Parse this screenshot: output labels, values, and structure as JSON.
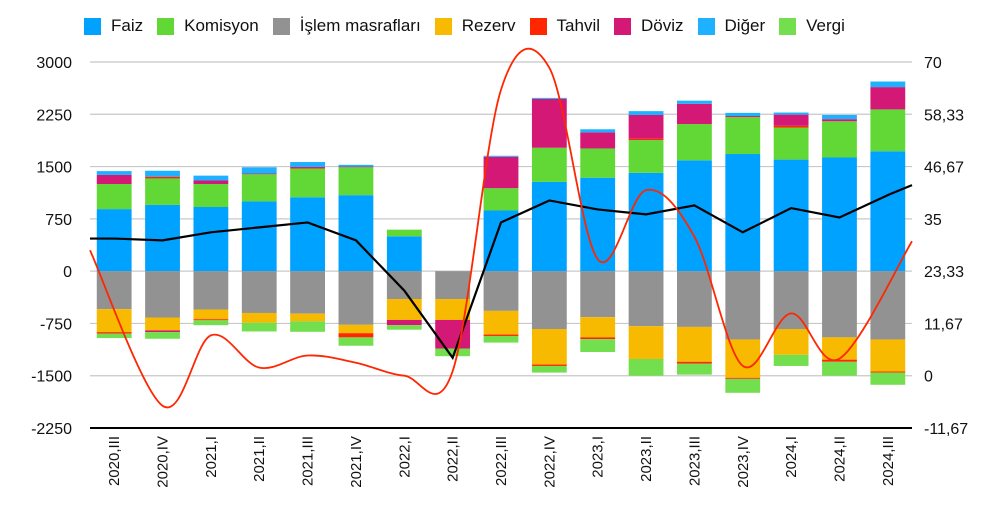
{
  "chart_data": {
    "type": "bar",
    "subtype": "stacked-bar-with-lines",
    "title": "",
    "xlabel": "",
    "ylabel": "",
    "ylabel_right": "",
    "ylim": [
      -2250,
      3000
    ],
    "yticks": [
      3000,
      2250,
      1500,
      750,
      0,
      -750,
      -1500,
      -2250
    ],
    "ytick_labels": [
      "3000",
      "2250",
      "1500",
      "750",
      "0",
      "-750",
      "-1500",
      "-2250"
    ],
    "ylim_right": [
      -11.67,
      70
    ],
    "yticks_right": [
      70,
      58.33,
      46.67,
      35,
      23.33,
      11.67,
      0,
      -11.67
    ],
    "ytick_labels_right": [
      "70",
      "58,33",
      "46,67",
      "35",
      "23,33",
      "11,67",
      "0",
      "-11,67"
    ],
    "grid": true,
    "legend_position": "top",
    "categories": [
      "2020,III",
      "2020,IV",
      "2021,I",
      "2021,II",
      "2021,III",
      "2021,IV",
      "2022,I",
      "2022,II",
      "2022,III",
      "2022,IV",
      "2023,I",
      "2023,II",
      "2023,III",
      "2023,IV",
      "2024,I",
      "2024,II",
      "2024,III"
    ],
    "series": [
      {
        "name": "Faiz",
        "color": "#00A2FF",
        "axis": "left",
        "kind": "bar",
        "values": [
          890,
          950,
          920,
          1000,
          1060,
          1090,
          500,
          0,
          870,
          1280,
          1340,
          1410,
          1590,
          1680,
          1600,
          1630,
          1720
        ]
      },
      {
        "name": "Komisyon",
        "color": "#61D836",
        "axis": "left",
        "kind": "bar",
        "values": [
          360,
          380,
          330,
          390,
          410,
          400,
          95,
          0,
          320,
          490,
          420,
          470,
          520,
          530,
          460,
          520,
          600
        ]
      },
      {
        "name": "İşlem masrafları",
        "color": "#929292",
        "axis": "left",
        "kind": "bar",
        "values": [
          -545,
          -665,
          -550,
          -600,
          -610,
          -770,
          -400,
          -400,
          -570,
          -830,
          -660,
          -790,
          -800,
          -980,
          -830,
          -950,
          -980
        ]
      },
      {
        "name": "Rezerv",
        "color": "#F8BA00",
        "axis": "left",
        "kind": "bar",
        "values": [
          -330,
          -185,
          -140,
          -140,
          -110,
          -120,
          -300,
          -300,
          -340,
          -510,
          -290,
          -470,
          -500,
          -550,
          -370,
          -320,
          -460
        ]
      },
      {
        "name": "Tahvil",
        "color": "#FF2600",
        "axis": "left",
        "kind": "bar",
        "values_pos": [
          0,
          25,
          0,
          0,
          10,
          0,
          0,
          0,
          0,
          0,
          0,
          20,
          0,
          0,
          25,
          0,
          0
        ],
        "values_neg": [
          -20,
          0,
          -15,
          0,
          0,
          -60,
          0,
          0,
          -20,
          -20,
          -25,
          0,
          -25,
          -15,
          0,
          -30,
          -15
        ]
      },
      {
        "name": "Döviz",
        "color": "#D31876",
        "axis": "left",
        "kind": "bar",
        "values_pos": [
          130,
          0,
          50,
          10,
          15,
          10,
          0,
          0,
          450,
          700,
          230,
          340,
          290,
          15,
          160,
          30,
          320
        ],
        "values_neg": [
          0,
          -25,
          0,
          0,
          0,
          0,
          -75,
          -410,
          0,
          0,
          0,
          0,
          0,
          0,
          0,
          0,
          0
        ]
      },
      {
        "name": "Diğer",
        "color": "#1DB1FF",
        "axis": "left",
        "kind": "bar",
        "values": [
          55,
          85,
          70,
          90,
          70,
          25,
          0,
          0,
          15,
          15,
          45,
          55,
          45,
          45,
          30,
          60,
          80
        ]
      },
      {
        "name": "Vergi",
        "color": "#73DE4E",
        "axis": "left",
        "kind": "bar",
        "values": [
          -65,
          -95,
          -70,
          -125,
          -150,
          -120,
          -65,
          -110,
          -95,
          -95,
          -185,
          -240,
          -160,
          -200,
          -160,
          -200,
          -175
        ]
      },
      {
        "name": "",
        "color": "#000000",
        "axis": "right",
        "kind": "line",
        "values": [
          30.6,
          30.2,
          32.0,
          33.1,
          34.2,
          30.2,
          19.0,
          4.0,
          34.2,
          39.1,
          37.1,
          36.0,
          38.0,
          32.0,
          37.4,
          35.3,
          40.3
        ]
      },
      {
        "name": "",
        "color": "#FF2600",
        "axis": "right",
        "kind": "smooth-line",
        "values": [
          28.0,
          -6.7,
          9.0,
          1.8,
          4.5,
          2.9,
          0.0,
          1.0,
          63.8,
          68.7,
          26.0,
          41.4,
          31.0,
          2.2,
          13.9,
          3.8,
          30.0
        ]
      }
    ]
  },
  "legend": [
    {
      "label": "Faiz",
      "color": "#00A2FF"
    },
    {
      "label": "Komisyon",
      "color": "#61D836"
    },
    {
      "label": "İşlem masrafları",
      "color": "#929292"
    },
    {
      "label": "Rezerv",
      "color": "#F8BA00"
    },
    {
      "label": "Tahvil",
      "color": "#FF2600"
    },
    {
      "label": "Döviz",
      "color": "#D31876"
    },
    {
      "label": "Diğer",
      "color": "#1DB1FF"
    },
    {
      "label": "Vergi",
      "color": "#73DE4E"
    }
  ]
}
